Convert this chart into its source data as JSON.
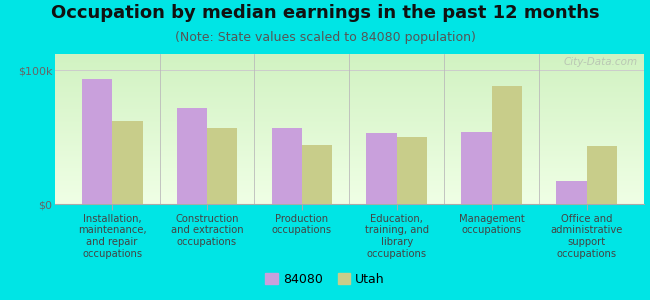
{
  "title": "Occupation by median earnings in the past 12 months",
  "subtitle": "(Note: State values scaled to 84080 population)",
  "categories": [
    "Installation,\nmaintenance,\nand repair\noccupations",
    "Construction\nand extraction\noccupations",
    "Production\noccupations",
    "Education,\ntraining, and\nlibrary\noccupations",
    "Management\noccupations",
    "Office and\nadministrative\nsupport\noccupations"
  ],
  "values_84080": [
    93000,
    72000,
    57000,
    53000,
    54000,
    17000
  ],
  "values_utah": [
    62000,
    57000,
    44000,
    50000,
    88000,
    43000
  ],
  "color_84080": "#c9a0dc",
  "color_utah": "#c8cd8a",
  "yticks": [
    0,
    100000
  ],
  "ytick_labels": [
    "$0",
    "$100k"
  ],
  "ylim": [
    0,
    112000
  ],
  "bg_top_color": "#f0fce8",
  "bg_bottom_color": "#d8f0c0",
  "outer_background": "#00e5e5",
  "legend_labels": [
    "84080",
    "Utah"
  ],
  "watermark": "City-Data.com",
  "bar_width": 0.32,
  "title_fontsize": 13,
  "subtitle_fontsize": 9,
  "tick_fontsize": 8,
  "label_fontsize": 7.2
}
